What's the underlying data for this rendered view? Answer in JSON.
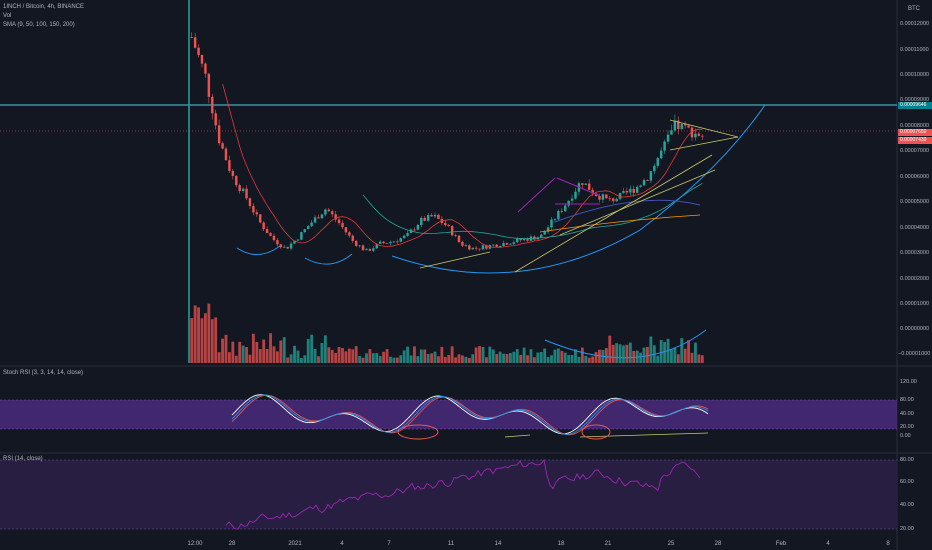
{
  "header": {
    "symbol": "1INCH / Bitcoin, 4h, BINANCE",
    "vol_label": "Vol",
    "sma_label": "SMA (9, 50, 100, 150, 200)",
    "currency": "BTC"
  },
  "price_axis": {
    "ticks": [
      "0.00012000",
      "0.00011000",
      "0.00010000",
      "0.00009000",
      "0.00008000",
      "0.00007000",
      "0.00006000",
      "0.00005000",
      "0.00004000",
      "0.00003000",
      "0.00002000",
      "0.00001000",
      "0.00000000",
      "−0.00001000"
    ],
    "tag_resistance": "0.00009646",
    "tag_last": "0.00007650",
    "tag_sub": "0.00007430"
  },
  "stoch": {
    "label": "Stoch RSI (3, 3, 14, 14, close)",
    "ticks": [
      "120.00",
      "80.00",
      "40.00",
      "20.00",
      "0.00"
    ]
  },
  "rsi": {
    "label": "RSI (14, close)",
    "ticks": [
      "80.00",
      "60.00",
      "40.00",
      "20.00"
    ]
  },
  "time_axis": [
    "12:00",
    "28",
    "2021",
    "4",
    "7",
    "11",
    "14",
    "18",
    "21",
    "25",
    "28",
    "Feb",
    "4",
    "8"
  ],
  "colors": {
    "up": "#26a69a",
    "down": "#ef5350",
    "bg": "#131722",
    "stoch_band": "#5b2a8f",
    "rsi_band": "#2a1f46",
    "rsi_line": "#9c27b0",
    "trend_yellow": "#c8c86a",
    "arc_blue": "#2196f3"
  },
  "chart_data": {
    "type": "candlestick",
    "title": "1INCH / Bitcoin, 4h, BINANCE",
    "ylabel": "BTC",
    "ylim": [
      -1e-05,
      0.000125
    ],
    "x": [
      "12:00",
      "28",
      "2021",
      "4",
      "7",
      "11",
      "14",
      "18",
      "21",
      "25",
      "28",
      "Feb",
      "4",
      "8"
    ],
    "series": [
      {
        "name": "1INCH / Bitcoin",
        "close_path": [
          0.000115,
          0.0001,
          7.5e-05,
          6e-05,
          5.2e-05,
          4.2e-05,
          3.5e-05,
          3.1e-05,
          3.6e-05,
          4.2e-05,
          4.7e-05,
          4.1e-05,
          3.4e-05,
          3e-05,
          3.3e-05,
          3.4e-05,
          3.6e-05,
          4.2e-05,
          4.4e-05,
          4e-05,
          3.3e-05,
          3.1e-05,
          3.2e-05,
          3.3e-05,
          3.4e-05,
          3.5e-05,
          3.6e-05,
          4.3e-05,
          5e-05,
          5.8e-05,
          5.3e-05,
          5e-05,
          5.2e-05,
          5.5e-05,
          6e-05,
          7e-05,
          8e-05,
          7.8e-05,
          7.6e-05
        ]
      }
    ],
    "annotations": [
      "horizontal resistance line",
      "ascending trendlines",
      "rounding bottom arcs",
      "symmetrical triangle"
    ]
  }
}
